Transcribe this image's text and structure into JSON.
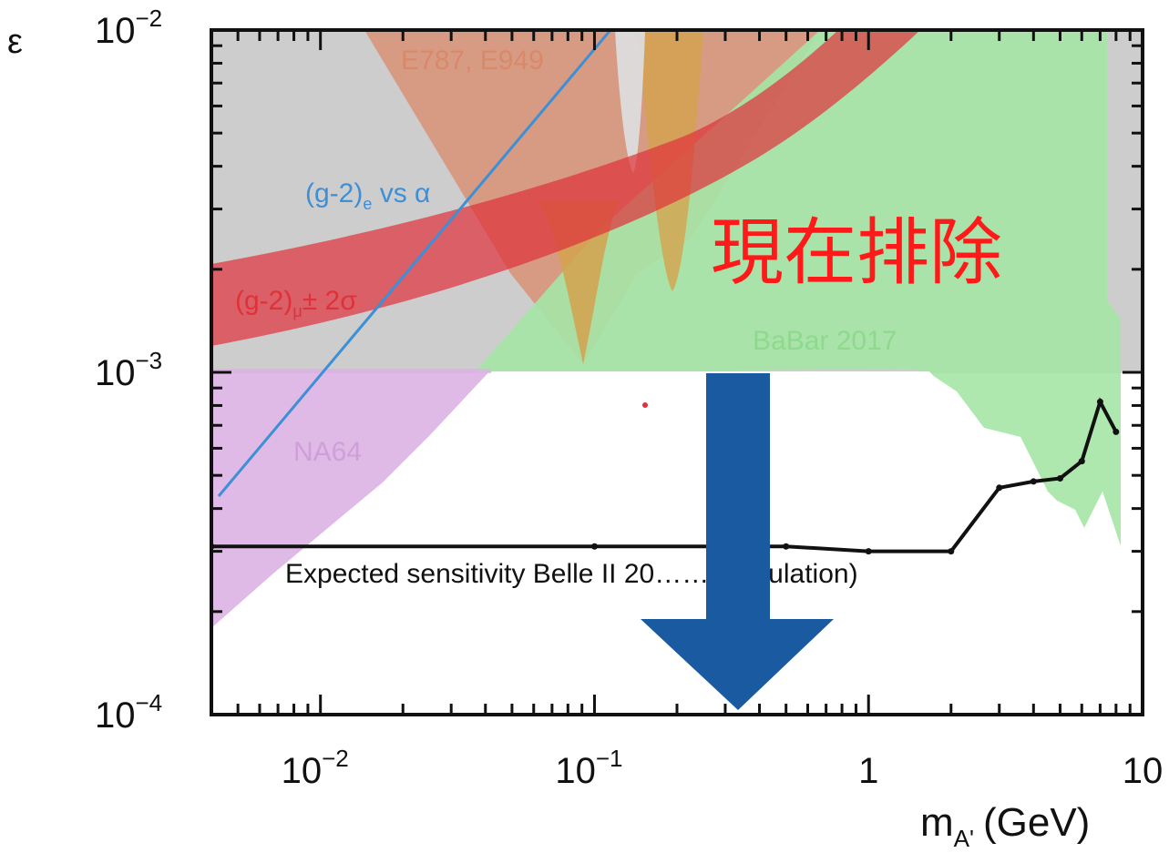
{
  "chart_data": {
    "type": "line",
    "xlabel": "m",
    "xlabel_sub": "A'",
    "xlabel_unit": "(GeV)",
    "ylabel": "ε",
    "x_scale": "log",
    "y_scale": "log",
    "xlim": [
      0.004,
      10
    ],
    "ylim": [
      0.0001,
      0.01
    ],
    "x_ticks": [
      {
        "value": 0.01,
        "base": "10",
        "exp": "−2"
      },
      {
        "value": 0.1,
        "base": "10",
        "exp": "−1"
      },
      {
        "value": 1,
        "base": "1",
        "exp": ""
      },
      {
        "value": 10,
        "base": "10",
        "exp": ""
      }
    ],
    "y_ticks": [
      {
        "value": 0.01,
        "base": "10",
        "exp": "−2"
      },
      {
        "value": 0.001,
        "base": "10",
        "exp": "−3"
      },
      {
        "value": 0.0001,
        "base": "10",
        "exp": "−4"
      }
    ],
    "series": [
      {
        "name": "Expected sensitivity Belle II 20…… (simulation)",
        "color": "#111111",
        "x": [
          0.004,
          0.1,
          0.5,
          1.0,
          2.0,
          3.0,
          4.0,
          5.0,
          6.0,
          7.0,
          8.0
        ],
        "y": [
          0.00031,
          0.00031,
          0.00031,
          0.0003,
          0.0003,
          0.00046,
          0.00048,
          0.00049,
          0.00055,
          0.00082,
          0.00067
        ]
      }
    ],
    "regions": [
      {
        "label": "E787, E949",
        "color": "#d9896a"
      },
      {
        "label": "(g-2)",
        "label_sub": "e",
        "label_tail": " vs α",
        "color": "#3d8fd6"
      },
      {
        "label": "(g-2)",
        "label_sub": "μ",
        "label_tail": "± 2σ",
        "color": "#e0313a"
      },
      {
        "label": "BaBar 2017",
        "color": "#8ed98e"
      },
      {
        "label": "NA64",
        "color": "#cf9fd9"
      }
    ],
    "annotations": [
      {
        "text": "現在排除",
        "color": "#ff1a1a"
      }
    ],
    "arrow_color": "#1a5aa0",
    "grid": false
  }
}
